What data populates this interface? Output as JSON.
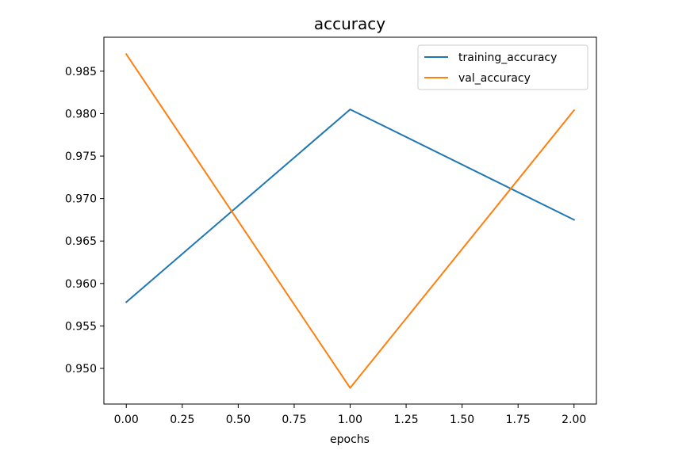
{
  "chart_data": {
    "type": "line",
    "title": "accuracy",
    "xlabel": "epochs",
    "ylabel": "",
    "x": [
      0,
      1,
      2
    ],
    "series": [
      {
        "name": "training_accuracy",
        "color": "#1f77b4",
        "values": [
          0.9578,
          0.9805,
          0.9675
        ]
      },
      {
        "name": "val_accuracy",
        "color": "#ff7f0e",
        "values": [
          0.987,
          0.9477,
          0.9804
        ]
      }
    ],
    "xlim": [
      -0.1,
      2.1
    ],
    "ylim": [
      0.9458,
      0.989
    ],
    "xticks": [
      0.0,
      0.25,
      0.5,
      0.75,
      1.0,
      1.25,
      1.5,
      1.75,
      2.0
    ],
    "xtick_labels": [
      "0.00",
      "0.25",
      "0.50",
      "0.75",
      "1.00",
      "1.25",
      "1.50",
      "1.75",
      "2.00"
    ],
    "yticks": [
      0.95,
      0.955,
      0.96,
      0.965,
      0.97,
      0.975,
      0.98,
      0.985
    ],
    "ytick_labels": [
      "0.950",
      "0.955",
      "0.960",
      "0.965",
      "0.970",
      "0.975",
      "0.980",
      "0.985"
    ],
    "grid": false,
    "legend_position": "top-right"
  }
}
